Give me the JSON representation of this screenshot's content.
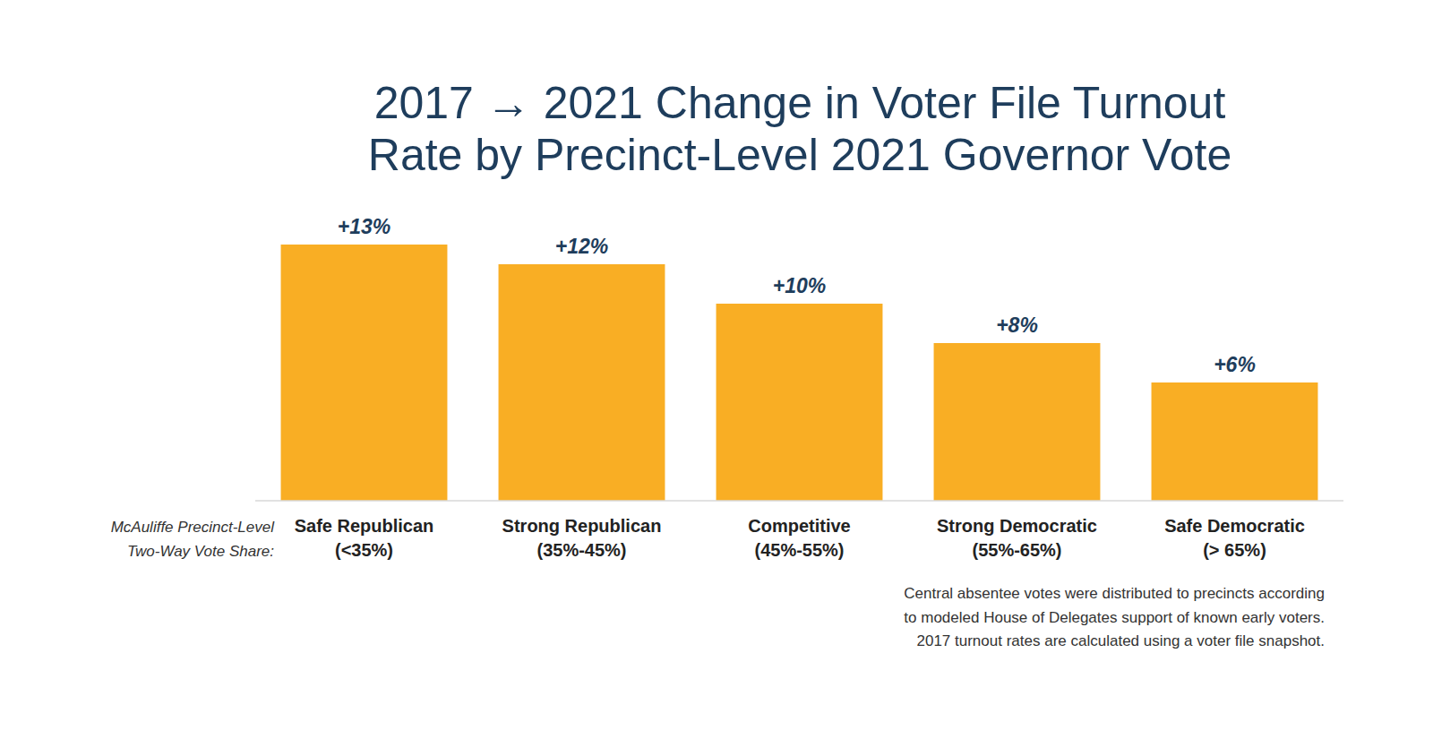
{
  "chart_data": {
    "type": "bar",
    "title": "2017 → 2021 Change in Voter File Turnout\nRate by Precinct-Level 2021 Governor Vote",
    "x_label": "McAuliffe Precinct-Level\nTwo-Way Vote Share:",
    "categories": [
      "Safe Republican\n(<35%)",
      "Strong Republican\n(35%-45%)",
      "Competitive\n(45%-55%)",
      "Strong Democratic\n(55%-65%)",
      "Safe Democratic\n(> 65%)"
    ],
    "values": [
      13,
      12,
      10,
      8,
      6
    ],
    "value_labels": [
      "+13%",
      "+12%",
      "+10%",
      "+8%",
      "+6%"
    ],
    "color": "#f9ae24",
    "ylim": [
      0,
      14
    ],
    "data_labels": true,
    "tick_labels": "x",
    "annotations": [
      "Central absentee votes were distributed to precincts according\nto modeled House of Delegates support of known early voters.\n2017 turnout rates are calculated using a voter file snapshot."
    ]
  }
}
